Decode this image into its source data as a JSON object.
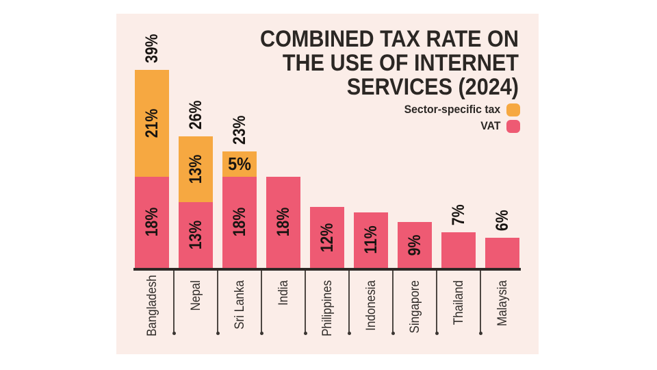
{
  "title": {
    "lines": [
      "COMBINED TAX RATE ON",
      "THE USE OF INTERNET",
      "SERVICES (2024)"
    ]
  },
  "colors": {
    "page_background": "#FFFFFF",
    "panel_background": "#FBEDE8",
    "sector_tax": "#F6A841",
    "vat": "#EE5A73",
    "text": "#2B2724",
    "axis": "#2D2926"
  },
  "chart_data": {
    "type": "bar",
    "stacked": true,
    "title": "COMBINED TAX RATE ON THE USE OF INTERNET SERVICES (2024)",
    "unit": "%",
    "categories": [
      "Bangladesh",
      "Nepal",
      "Sri Lanka",
      "India",
      "Philippines",
      "Indonesia",
      "Singapore",
      "Thailand",
      "Malaysia"
    ],
    "legend": [
      {
        "key": "sector",
        "label": "Sector-specific tax",
        "color": "#F6A841"
      },
      {
        "key": "vat",
        "label": "VAT",
        "color": "#EE5A73"
      }
    ],
    "series": [
      {
        "name": "Sector-specific tax",
        "key": "sector",
        "values": [
          21,
          13,
          5,
          0,
          0,
          0,
          0,
          0,
          0
        ]
      },
      {
        "name": "VAT",
        "key": "vat",
        "values": [
          18,
          13,
          18,
          18,
          12,
          11,
          9,
          7,
          6
        ]
      }
    ],
    "totals": [
      39,
      26,
      23,
      18,
      12,
      11,
      9,
      7,
      6
    ],
    "bars": [
      {
        "country": "Bangladesh",
        "total_label": "39%",
        "segments": [
          {
            "key": "vat",
            "value": 18,
            "label": "18%"
          },
          {
            "key": "sector",
            "value": 21,
            "label": "21%"
          }
        ]
      },
      {
        "country": "Nepal",
        "total_label": "26%",
        "segments": [
          {
            "key": "vat",
            "value": 13,
            "label": "13%"
          },
          {
            "key": "sector",
            "value": 13,
            "label": "13%"
          }
        ]
      },
      {
        "country": "Sri Lanka",
        "total_label": "23%",
        "segments": [
          {
            "key": "vat",
            "value": 18,
            "label": "18%"
          },
          {
            "key": "sector",
            "value": 5,
            "label": "5%",
            "horizontal": true
          }
        ]
      },
      {
        "country": "India",
        "segments": [
          {
            "key": "vat",
            "value": 18,
            "label": "18%"
          }
        ]
      },
      {
        "country": "Philippines",
        "segments": [
          {
            "key": "vat",
            "value": 12,
            "label": "12%"
          }
        ]
      },
      {
        "country": "Indonesia",
        "segments": [
          {
            "key": "vat",
            "value": 11,
            "label": "11%"
          }
        ]
      },
      {
        "country": "Singapore",
        "segments": [
          {
            "key": "vat",
            "value": 9,
            "label": "9%"
          }
        ]
      },
      {
        "country": "Thailand",
        "segments": [
          {
            "key": "vat",
            "value": 7,
            "label": "7%",
            "outside": true
          }
        ]
      },
      {
        "country": "Malaysia",
        "segments": [
          {
            "key": "vat",
            "value": 6,
            "label": "6%",
            "outside": true
          }
        ]
      }
    ],
    "ylim": [
      0,
      40
    ],
    "grid": false,
    "legend_position": "top-right",
    "value_label_rotation": -90
  }
}
